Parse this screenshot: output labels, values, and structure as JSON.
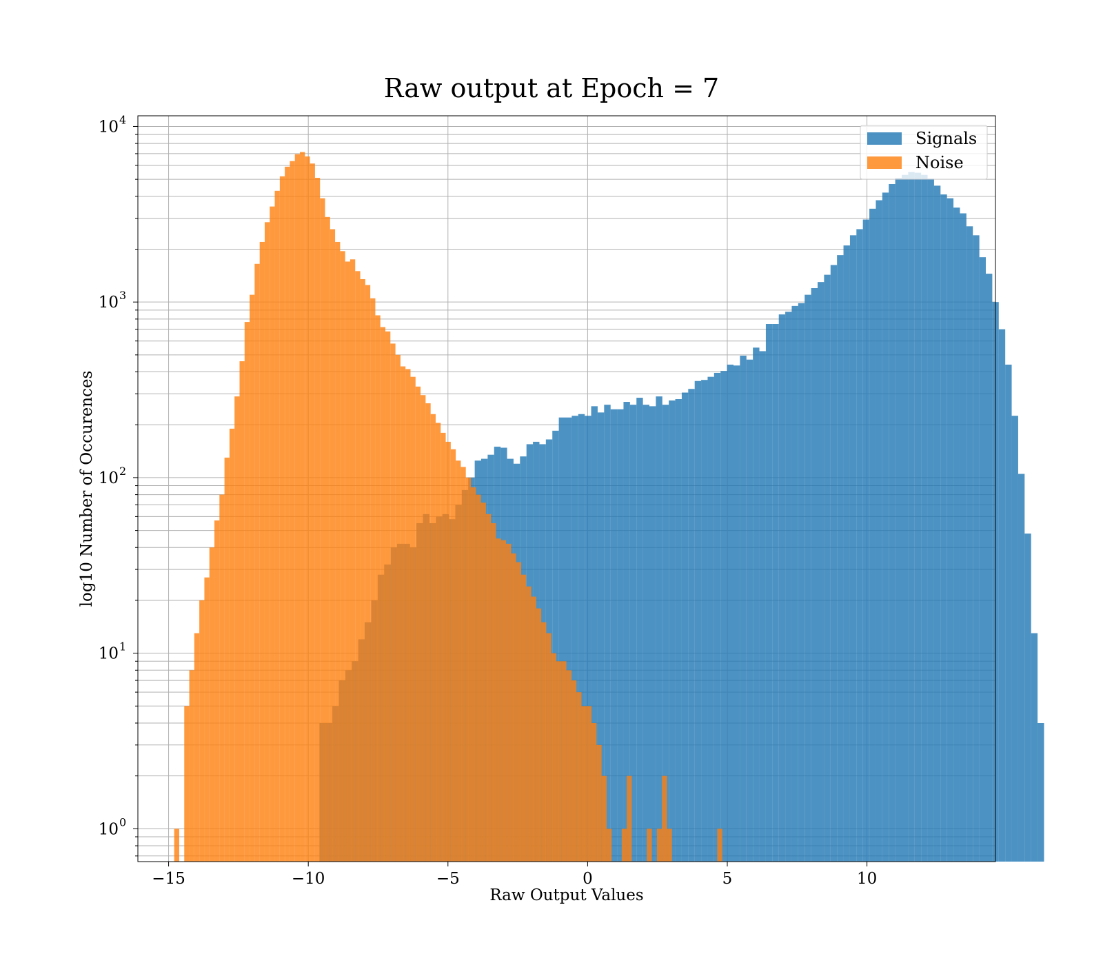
{
  "chart_data": {
    "type": "bar",
    "subtype": "overlaid-histogram",
    "title": "Raw output at Epoch = 7",
    "xlabel": "Raw Output Values",
    "ylabel": "log10 Number of Occurences",
    "yscale": "log",
    "xlim": [
      -16.1,
      14.6
    ],
    "ylim": [
      0.65,
      11500
    ],
    "grid": "on (major and minor)",
    "legend_placement": "top-right",
    "x_ticks": [
      {
        "value": -15,
        "label": "−15"
      },
      {
        "value": -10,
        "label": "−10"
      },
      {
        "value": -5,
        "label": "−5"
      },
      {
        "value": 0,
        "label": "0"
      },
      {
        "value": 5,
        "label": "5"
      },
      {
        "value": 10,
        "label": "10"
      }
    ],
    "y_ticks": [
      {
        "value": 1,
        "base": "10",
        "exp": "0"
      },
      {
        "value": 10,
        "base": "10",
        "exp": "1"
      },
      {
        "value": 100,
        "base": "10",
        "exp": "2"
      },
      {
        "value": 1000,
        "base": "10",
        "exp": "3"
      },
      {
        "value": 10000,
        "base": "10",
        "exp": "4"
      }
    ],
    "series": [
      {
        "name": "Signals",
        "color": "#1f77b4",
        "opacity": 0.8,
        "bin_start": -9.6,
        "bin_width": 0.2316,
        "counts": [
          4,
          4,
          5,
          7,
          8,
          9,
          12,
          15,
          20,
          28,
          32,
          40,
          42,
          42,
          40,
          55,
          62,
          55,
          60,
          62,
          58,
          70,
          85,
          100,
          125,
          128,
          135,
          150,
          148,
          128,
          120,
          132,
          155,
          160,
          155,
          165,
          185,
          220,
          220,
          225,
          230,
          225,
          255,
          235,
          260,
          245,
          245,
          270,
          260,
          285,
          260,
          255,
          290,
          260,
          275,
          280,
          305,
          320,
          355,
          360,
          375,
          395,
          405,
          440,
          435,
          495,
          470,
          550,
          525,
          750,
          750,
          850,
          880,
          950,
          985,
          1100,
          1200,
          1300,
          1430,
          1625,
          1850,
          2100,
          2400,
          2600,
          2950,
          3400,
          3800,
          4200,
          4700,
          5100,
          5300,
          5500,
          5450,
          5300,
          5050,
          4600,
          4100,
          3900,
          3450,
          3200,
          2700,
          2400,
          1800,
          1450,
          1000,
          700,
          440,
          225,
          105,
          48,
          13,
          4
        ]
      },
      {
        "name": "Noise",
        "color": "#ff7f0e",
        "opacity": 0.8,
        "bin_start": -14.8,
        "bin_width": 0.18,
        "counts": [
          1,
          0,
          5,
          8,
          13,
          20,
          27,
          40,
          57,
          80,
          130,
          190,
          290,
          460,
          770,
          1100,
          1650,
          2200,
          2850,
          3500,
          4300,
          5200,
          5900,
          6350,
          6950,
          7150,
          6750,
          6150,
          5100,
          3900,
          3050,
          2600,
          2200,
          1950,
          1700,
          1750,
          1500,
          1350,
          1250,
          1050,
          840,
          720,
          680,
          580,
          500,
          430,
          415,
          375,
          330,
          295,
          265,
          230,
          205,
          180,
          160,
          145,
          125,
          115,
          100,
          88,
          80,
          72,
          62,
          55,
          45,
          44,
          42,
          37,
          33,
          28,
          24,
          21,
          18,
          15,
          13,
          10,
          9,
          9,
          8,
          7,
          6,
          5,
          5,
          4,
          3,
          2,
          1,
          0,
          0,
          1,
          2,
          0,
          0,
          0,
          1,
          0,
          1,
          2,
          1,
          0,
          0,
          0,
          0,
          0,
          0,
          0,
          0,
          0,
          1
        ]
      }
    ]
  }
}
